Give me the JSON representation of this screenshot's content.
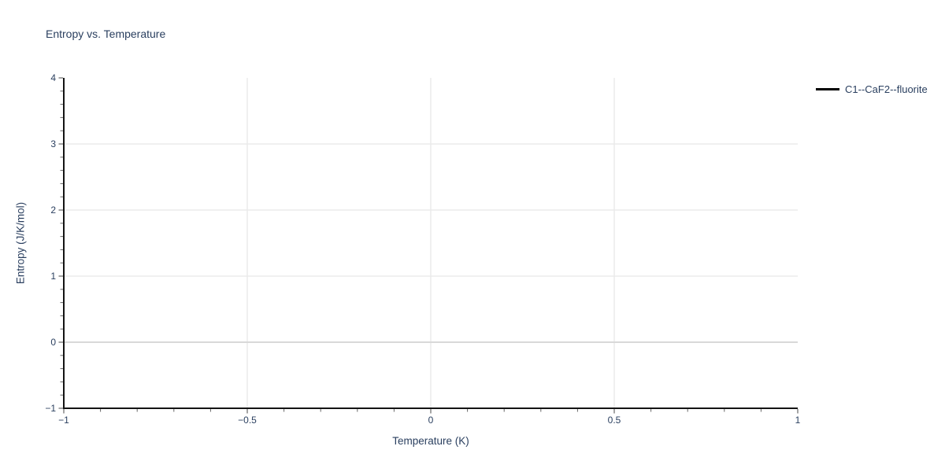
{
  "chart_data": {
    "type": "line",
    "title": "Entropy vs. Temperature",
    "xlabel": "Temperature (K)",
    "ylabel": "Entropy (J/K/mol)",
    "xlim": [
      -1,
      1
    ],
    "ylim": [
      -1,
      4
    ],
    "x_ticks": [
      -1,
      -0.5,
      0,
      0.5,
      1
    ],
    "x_tick_labels": [
      "−1",
      "−0.5",
      "0",
      "0.5",
      "1"
    ],
    "y_ticks": [
      -1,
      0,
      1,
      2,
      3,
      4
    ],
    "y_tick_labels": [
      "−1",
      "0",
      "1",
      "2",
      "3",
      "4"
    ],
    "x_minor_step": 0.1,
    "y_minor_step": 0.2,
    "grid": true,
    "y_zeroline": true,
    "legend_position": "top-right",
    "series": [
      {
        "name": "C1--CaF2--fluorite",
        "color": "#000000",
        "x": [],
        "y": []
      }
    ]
  },
  "colors": {
    "background": "#ffffff",
    "text": "#2a3f5f",
    "grid": "#e8e8e8",
    "zeroline": "#d8d8d8",
    "axis_line": "#141414",
    "tick_mark": "#666666",
    "legend_line": "#000000"
  }
}
